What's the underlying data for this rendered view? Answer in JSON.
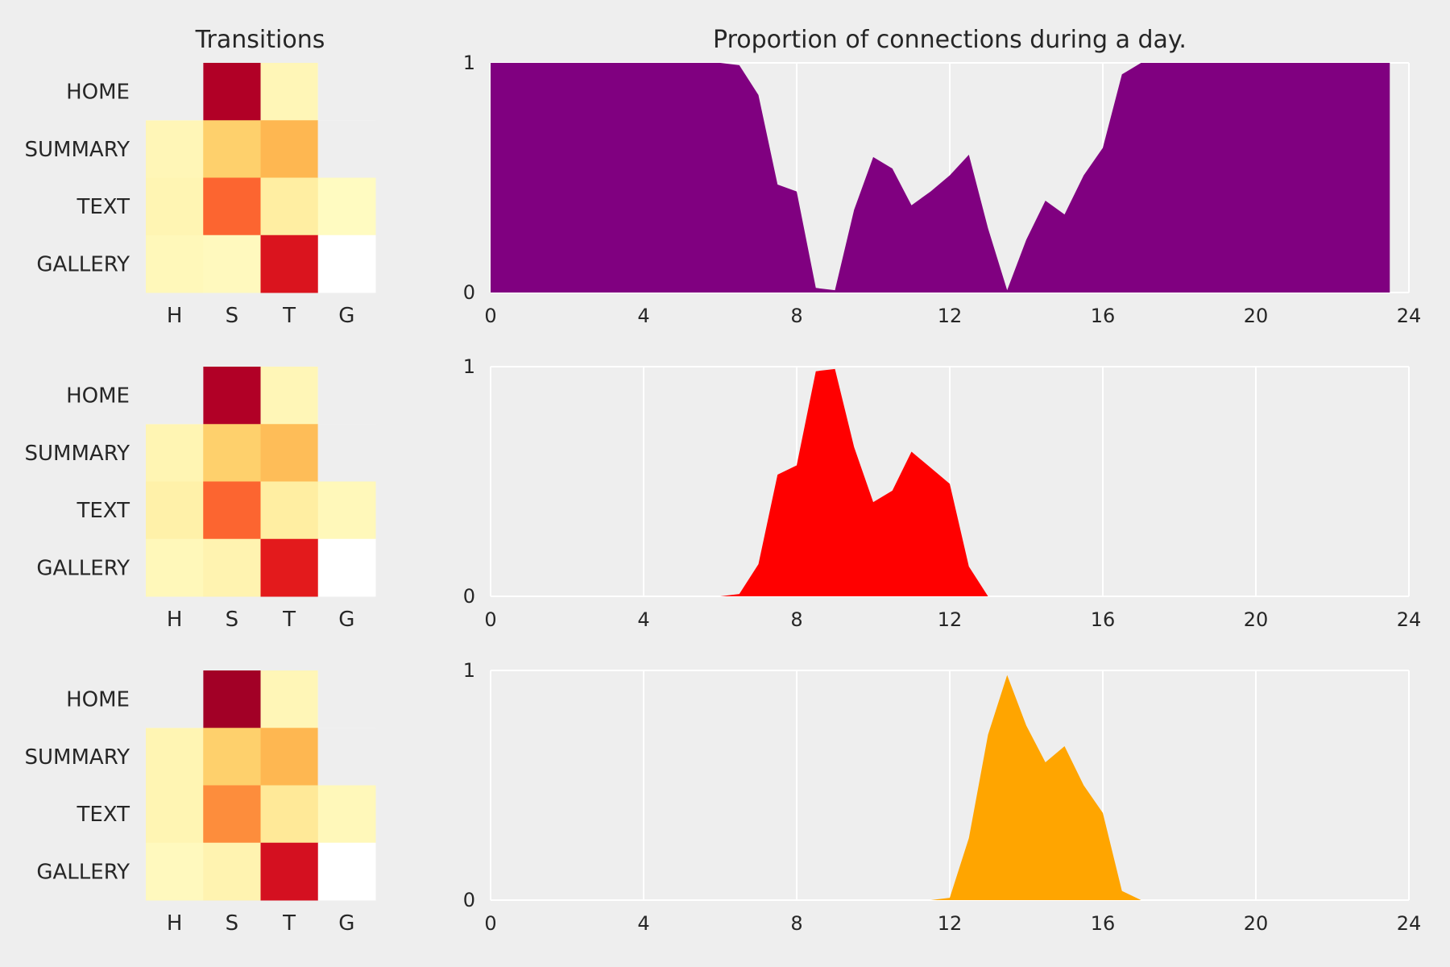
{
  "figure": {
    "heatmap_title": "Transitions",
    "area_title": "Proportion of connections during a day."
  },
  "chart_data": [
    {
      "type": "heatmap",
      "title": "Transitions",
      "row_labels": [
        "HOME",
        "SUMMARY",
        "TEXT",
        "GALLERY"
      ],
      "col_labels": [
        "H",
        "S",
        "T",
        "G"
      ],
      "colormap": "YlOrRd",
      "values": [
        [
          0.0,
          0.9,
          0.06,
          0.0
        ],
        [
          0.06,
          0.28,
          0.36,
          0.0
        ],
        [
          0.07,
          0.58,
          0.12,
          0.03
        ],
        [
          0.05,
          0.04,
          0.78,
          0.0
        ]
      ]
    },
    {
      "type": "area",
      "title": "Proportion of connections during a day.",
      "color": "#800080",
      "xlim": [
        0,
        24
      ],
      "ylim": [
        0,
        1
      ],
      "xticks": [
        0,
        4,
        8,
        12,
        16,
        20,
        24
      ],
      "yticks": [
        0,
        1
      ],
      "grid": true,
      "x": [
        0,
        0.5,
        1,
        1.5,
        2,
        2.5,
        3,
        3.5,
        4,
        4.5,
        5,
        5.5,
        6,
        6.5,
        7,
        7.5,
        8,
        8.5,
        9,
        9.5,
        10,
        10.5,
        11,
        11.5,
        12,
        12.5,
        13,
        13.5,
        14,
        14.5,
        15,
        15.5,
        16,
        16.5,
        17,
        17.5,
        18,
        18.5,
        19,
        19.5,
        20,
        20.5,
        21,
        21.5,
        22,
        22.5,
        23,
        23.5
      ],
      "y": [
        1,
        1,
        1,
        1,
        1,
        1,
        1,
        1,
        1,
        1,
        1,
        1,
        1,
        0.99,
        0.86,
        0.47,
        0.44,
        0.02,
        0.01,
        0.36,
        0.59,
        0.54,
        0.38,
        0.44,
        0.51,
        0.6,
        0.28,
        0.01,
        0.23,
        0.4,
        0.34,
        0.51,
        0.63,
        0.95,
        1,
        1,
        1,
        1,
        1,
        1,
        1,
        1,
        1,
        1,
        1,
        1,
        1,
        1
      ]
    },
    {
      "type": "heatmap",
      "title": "",
      "row_labels": [
        "HOME",
        "SUMMARY",
        "TEXT",
        "GALLERY"
      ],
      "col_labels": [
        "H",
        "S",
        "T",
        "G"
      ],
      "colormap": "YlOrRd",
      "values": [
        [
          0.0,
          0.9,
          0.06,
          0.0
        ],
        [
          0.07,
          0.28,
          0.34,
          0.0
        ],
        [
          0.1,
          0.58,
          0.12,
          0.05
        ],
        [
          0.05,
          0.08,
          0.75,
          0.0
        ]
      ]
    },
    {
      "type": "area",
      "title": "",
      "color": "#ff0000",
      "xlim": [
        0,
        24
      ],
      "ylim": [
        0,
        1
      ],
      "xticks": [
        0,
        4,
        8,
        12,
        16,
        20,
        24
      ],
      "yticks": [
        0,
        1
      ],
      "grid": true,
      "x": [
        0,
        0.5,
        1,
        1.5,
        2,
        2.5,
        3,
        3.5,
        4,
        4.5,
        5,
        5.5,
        6,
        6.5,
        7,
        7.5,
        8,
        8.5,
        9,
        9.5,
        10,
        10.5,
        11,
        11.5,
        12,
        12.5,
        13,
        13.5,
        14,
        14.5,
        15,
        15.5,
        16,
        16.5,
        17,
        17.5,
        18,
        18.5,
        19,
        19.5,
        20,
        20.5,
        21,
        21.5,
        22,
        22.5,
        23,
        23.5
      ],
      "y": [
        0,
        0,
        0,
        0,
        0,
        0,
        0,
        0,
        0,
        0,
        0,
        0,
        0,
        0.01,
        0.14,
        0.53,
        0.57,
        0.98,
        0.99,
        0.65,
        0.41,
        0.46,
        0.63,
        0.56,
        0.49,
        0.13,
        0,
        0,
        0,
        0,
        0,
        0,
        0,
        0,
        0,
        0,
        0,
        0,
        0,
        0,
        0,
        0,
        0,
        0,
        0,
        0,
        0,
        0
      ]
    },
    {
      "type": "heatmap",
      "title": "",
      "row_labels": [
        "HOME",
        "SUMMARY",
        "TEXT",
        "GALLERY"
      ],
      "col_labels": [
        "H",
        "S",
        "T",
        "G"
      ],
      "colormap": "YlOrRd",
      "values": [
        [
          0.0,
          0.93,
          0.06,
          0.0
        ],
        [
          0.07,
          0.28,
          0.36,
          0.0
        ],
        [
          0.07,
          0.5,
          0.15,
          0.05
        ],
        [
          0.04,
          0.08,
          0.8,
          0.0
        ]
      ]
    },
    {
      "type": "area",
      "title": "",
      "color": "#ffa500",
      "xlim": [
        0,
        24
      ],
      "ylim": [
        0,
        1
      ],
      "xticks": [
        0,
        4,
        8,
        12,
        16,
        20,
        24
      ],
      "yticks": [
        0,
        1
      ],
      "grid": true,
      "x": [
        0,
        0.5,
        1,
        1.5,
        2,
        2.5,
        3,
        3.5,
        4,
        4.5,
        5,
        5.5,
        6,
        6.5,
        7,
        7.5,
        8,
        8.5,
        9,
        9.5,
        10,
        10.5,
        11,
        11.5,
        12,
        12.5,
        13,
        13.5,
        14,
        14.5,
        15,
        15.5,
        16,
        16.5,
        17,
        17.5,
        18,
        18.5,
        19,
        19.5,
        20,
        20.5,
        21,
        21.5,
        22,
        22.5,
        23,
        23.5
      ],
      "y": [
        0,
        0,
        0,
        0,
        0,
        0,
        0,
        0,
        0,
        0,
        0,
        0,
        0,
        0,
        0,
        0,
        0,
        0,
        0,
        0,
        0,
        0,
        0,
        0,
        0.01,
        0.27,
        0.72,
        0.98,
        0.76,
        0.6,
        0.67,
        0.5,
        0.38,
        0.04,
        0,
        0,
        0,
        0,
        0,
        0,
        0,
        0,
        0,
        0,
        0,
        0,
        0,
        0
      ]
    }
  ]
}
